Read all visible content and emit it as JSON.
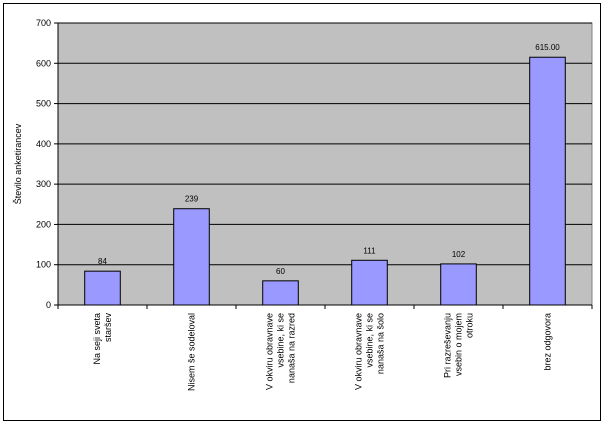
{
  "chart_data": {
    "type": "bar",
    "ylabel": "Število anketirancev",
    "ylim": [
      0,
      700
    ],
    "yticks": [
      0,
      100,
      200,
      300,
      400,
      500,
      600,
      700
    ],
    "grid": true,
    "legend": "none",
    "colors": {
      "bar_fill": "#9999ff",
      "bar_stroke": "#000000",
      "plot_bg": "#c0c0c0",
      "grid": "#000000"
    },
    "categories": [
      [
        "Na seji sveta",
        "staršev"
      ],
      [
        "Nisem še sodeloval"
      ],
      [
        "V okviru obravnave",
        "vsebine, ki se",
        "nanaša na razred"
      ],
      [
        "V okviru obravnave",
        "vsebine, ki se",
        "nanaša na šolo"
      ],
      [
        "Pri razreševanju",
        "vsebin o mojem",
        "otroku"
      ],
      [
        "brez odgovora"
      ]
    ],
    "values": [
      84,
      239,
      60,
      111,
      102,
      615
    ],
    "value_labels": [
      "84",
      "239",
      "60",
      "111",
      "102",
      "615.00"
    ]
  }
}
